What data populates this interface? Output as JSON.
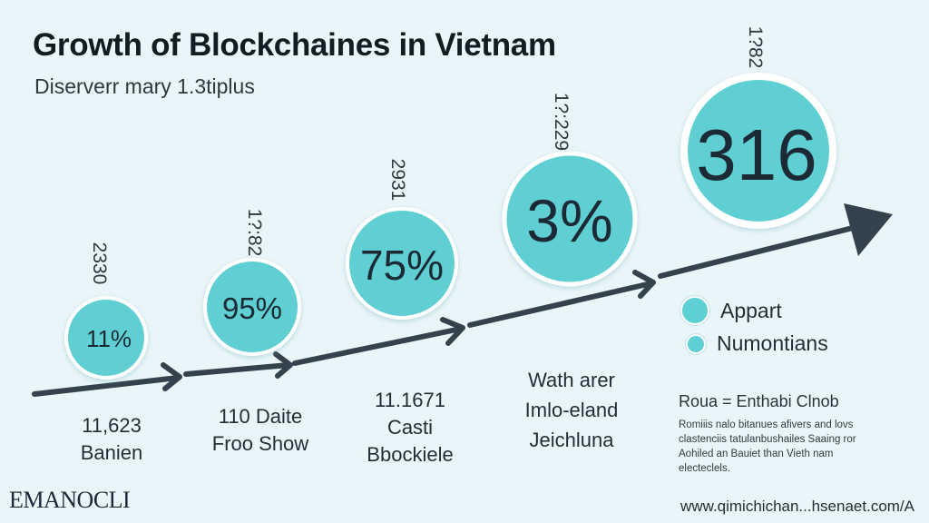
{
  "header": {
    "title": "Growth of Blockchaines  in Vietnam",
    "subtitle": "Diserverr mary 1.3tiplus"
  },
  "stages": [
    {
      "value": "11%",
      "top_label": "2330",
      "bottom_label": [
        "11,623",
        "Banien"
      ]
    },
    {
      "value": "95%",
      "top_label": "1?:82",
      "bottom_label": [
        "110 Daite",
        "Froo Show"
      ]
    },
    {
      "value": "75%",
      "top_label": "2931",
      "bottom_label": [
        "11.1671",
        "Casti",
        "Bbockiele"
      ]
    },
    {
      "value": "3%",
      "top_label": "1?:229",
      "bottom_label": [
        "Wath arer",
        "Imlo-eland",
        "Jeichluna"
      ]
    },
    {
      "value": "316",
      "top_label": "1?82",
      "bottom_label": []
    }
  ],
  "legend": [
    {
      "label": "Appart"
    },
    {
      "label": "Numontians"
    }
  ],
  "note": {
    "title": "Roua = Enthabi Clnob",
    "body": "Romiiis nalo bitanues afivers and lovs clastenciis tatulanbushailes Saaing ror Aohiled an Bauiet than Vieth nam electeclels."
  },
  "footer": {
    "logo": "EMANOCLI",
    "url": "www.qimichichan...hsenaet.com/A"
  },
  "colors": {
    "background": "#eaf5f9",
    "circle_fill": "#5ecfd4",
    "circle_ring": "#ffffff",
    "arrow": "#34424e",
    "text": "#1f2e38"
  }
}
